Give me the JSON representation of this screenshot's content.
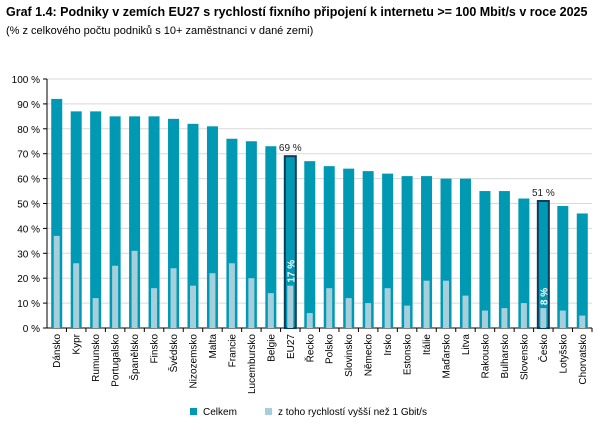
{
  "chart_data": {
    "type": "bar",
    "title": "Graf 1.4: Podniky v zemích EU27 s rychlostí fixního připojení k internetu >= 100 Mbit/s v roce 2025",
    "subtitle": "(% z celkového počtu podniků s 10+ zaměstnanci v dané zemi)",
    "categories": [
      "Dánsko",
      "Kypr",
      "Rumunsko",
      "Portugalsko",
      "Španělsko",
      "Finsko",
      "Švédsko",
      "Nizozemsko",
      "Malta",
      "Francie",
      "Lucembursko",
      "Belgie",
      "EU27",
      "Řecko",
      "Polsko",
      "Slovinsko",
      "Německo",
      "Irsko",
      "Estonsko",
      "Itálie",
      "Maďarsko",
      "Litva",
      "Rakousko",
      "Bulharsko",
      "Slovensko",
      "Česko",
      "Lotyšsko",
      "Chorvatsko"
    ],
    "series": [
      {
        "name": "Celkem",
        "color": "#0099b3",
        "values": [
          92,
          87,
          87,
          85,
          85,
          85,
          84,
          82,
          81,
          76,
          75,
          73,
          69,
          67,
          65,
          64,
          63,
          62,
          61,
          61,
          60,
          60,
          55,
          55,
          52,
          51,
          49,
          46
        ]
      },
      {
        "name": "z toho rychlostí vyšší než 1 Gbit/s",
        "color": "#a6cfdc",
        "values": [
          37,
          26,
          12,
          25,
          31,
          16,
          24,
          17,
          22,
          26,
          20,
          14,
          17,
          6,
          16,
          12,
          10,
          16,
          9,
          19,
          19,
          13,
          7,
          8,
          10,
          8,
          7,
          5
        ]
      }
    ],
    "highlighted": [
      "EU27",
      "Česko"
    ],
    "annotations": [
      {
        "category": "EU27",
        "total_label": "69 %",
        "gbit_label": "17 %"
      },
      {
        "category": "Česko",
        "total_label": "51 %",
        "gbit_label": "8 %"
      }
    ],
    "ylim": [
      0,
      100
    ],
    "yticks": [
      "0 %",
      "10 %",
      "20 %",
      "30 %",
      "40 %",
      "50 %",
      "60 %",
      "70 %",
      "80 %",
      "90 %",
      "100 %"
    ],
    "grid": true,
    "legend": "bottom"
  }
}
